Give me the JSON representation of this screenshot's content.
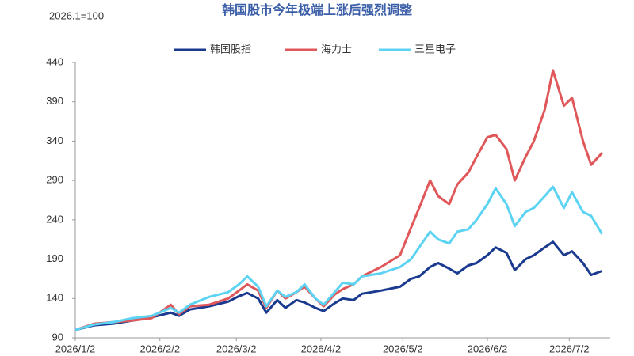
{
  "chart_data": {
    "type": "line",
    "title": "韩国股市今年极端上涨后强烈调整",
    "subtitle": "2026.1=100",
    "x": [
      "2026/1/2",
      "2026/1/9",
      "2026/1/16",
      "2026/1/23",
      "2026/1/30",
      "2026/2/6",
      "2026/2/9",
      "2026/2/13",
      "2026/2/20",
      "2026/2/27",
      "2026/3/3",
      "2026/3/6",
      "2026/3/10",
      "2026/3/13",
      "2026/3/17",
      "2026/3/20",
      "2026/3/24",
      "2026/3/27",
      "2026/3/31",
      "2026/4/3",
      "2026/4/7",
      "2026/4/10",
      "2026/4/14",
      "2026/4/17",
      "2026/4/24",
      "2026/5/1",
      "2026/5/5",
      "2026/5/8",
      "2026/5/12",
      "2026/5/15",
      "2026/5/19",
      "2026/5/22",
      "2026/5/26",
      "2026/5/29",
      "2026/6/2",
      "2026/6/5",
      "2026/6/9",
      "2026/6/12",
      "2026/6/16",
      "2026/6/19",
      "2026/6/23",
      "2026/6/26",
      "2026/6/30",
      "2026/7/3",
      "2026/7/7",
      "2026/7/10",
      "2026/7/14"
    ],
    "series": [
      {
        "name": "韩国股指",
        "color": "#1a3a8f",
        "values": [
          100,
          106,
          108,
          112,
          116,
          122,
          118,
          126,
          130,
          136,
          143,
          147,
          140,
          122,
          138,
          128,
          138,
          135,
          128,
          124,
          134,
          140,
          138,
          146,
          150,
          155,
          165,
          168,
          180,
          185,
          178,
          172,
          182,
          185,
          195,
          205,
          198,
          176,
          190,
          195,
          205,
          212,
          195,
          200,
          185,
          170,
          175
        ]
      },
      {
        "name": "海力士",
        "color": "#e0575a",
        "values": [
          100,
          108,
          110,
          112,
          115,
          132,
          120,
          130,
          132,
          140,
          150,
          158,
          150,
          128,
          150,
          140,
          148,
          155,
          140,
          130,
          145,
          152,
          158,
          168,
          180,
          195,
          230,
          255,
          290,
          270,
          260,
          285,
          300,
          320,
          345,
          348,
          330,
          290,
          320,
          340,
          380,
          430,
          385,
          395,
          340,
          310,
          325
        ]
      },
      {
        "name": "三星电子",
        "color": "#5cd3f3",
        "values": [
          100,
          107,
          110,
          115,
          118,
          128,
          122,
          132,
          142,
          148,
          158,
          168,
          155,
          130,
          150,
          142,
          148,
          158,
          140,
          132,
          148,
          160,
          158,
          168,
          172,
          180,
          190,
          205,
          225,
          215,
          210,
          225,
          228,
          240,
          260,
          280,
          260,
          232,
          250,
          255,
          270,
          282,
          255,
          275,
          250,
          245,
          222
        ]
      }
    ],
    "xlim": [
      "2026/1/2",
      "2026/7/17"
    ],
    "xticks": [
      "2026/1/2",
      "2026/2/2",
      "2026/3/2",
      "2026/4/2",
      "2026/5/2",
      "2026/6/2",
      "2026/7/2"
    ],
    "ylim": [
      90,
      440
    ],
    "yticks": [
      90,
      140,
      190,
      240,
      290,
      340,
      390,
      440
    ],
    "grid": false
  }
}
